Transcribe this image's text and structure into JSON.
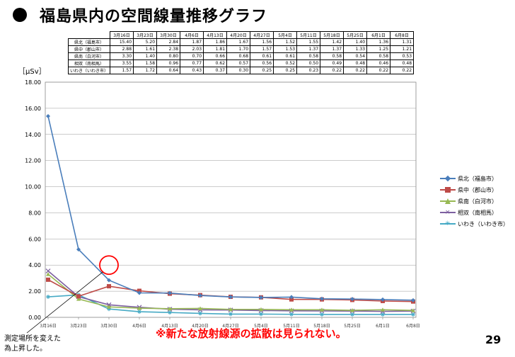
{
  "page_title": "福島県内の空間線量推移グラフ",
  "unit_label": "［μSv］",
  "table": {
    "dates": [
      "3月16日",
      "3月23日",
      "3月30日",
      "4月6日",
      "4月13日",
      "4月20日",
      "4月27日",
      "5月4日",
      "5月11日",
      "5月18日",
      "5月25日",
      "6月1日",
      "6月8日"
    ],
    "rows": [
      {
        "label": "県北（福島市）",
        "values": [
          "15.40",
          "5.20",
          "2.84",
          "1.87",
          "1.86",
          "1.67",
          "1.56",
          "1.52",
          "1.55",
          "1.42",
          "1.40",
          "1.36",
          "1.31"
        ]
      },
      {
        "label": "県中（郡山市）",
        "values": [
          "2.88",
          "1.61",
          "2.38",
          "2.03",
          "1.81",
          "1.70",
          "1.57",
          "1.53",
          "1.37",
          "1.37",
          "1.33",
          "1.25",
          "1.21"
        ]
      },
      {
        "label": "県南（白河市）",
        "values": [
          "3.30",
          "1.40",
          "0.80",
          "0.70",
          "0.66",
          "0.68",
          "0.61",
          "0.61",
          "0.58",
          "0.58",
          "0.54",
          "0.58",
          "0.53"
        ]
      },
      {
        "label": "相双（南相馬）",
        "values": [
          "3.55",
          "1.58",
          "0.96",
          "0.77",
          "0.62",
          "0.57",
          "0.56",
          "0.52",
          "0.50",
          "0.49",
          "0.48",
          "0.46",
          "0.48"
        ]
      },
      {
        "label": "いわき（いわき市）",
        "values": [
          "1.57",
          "1.72",
          "0.64",
          "0.43",
          "0.37",
          "0.30",
          "0.25",
          "0.25",
          "0.23",
          "0.22",
          "0.22",
          "0.22",
          "0.22"
        ]
      }
    ]
  },
  "chart_data": {
    "type": "line",
    "ylim": [
      0,
      18
    ],
    "yticks": [
      "0.00",
      "2.00",
      "4.00",
      "6.00",
      "8.00",
      "10.00",
      "12.00",
      "14.00",
      "16.00",
      "18.00"
    ],
    "grid": true,
    "legend_placement": "right",
    "x": [
      "3月16日",
      "3月23日",
      "3月30日",
      "4月6日",
      "4月13日",
      "4月20日",
      "4月27日",
      "5月4日",
      "5月11日",
      "5月18日",
      "5月25日",
      "6月1日",
      "6月8日"
    ],
    "series": [
      {
        "name": "県北（福島市）",
        "color": "#4a7ebb",
        "marker": "diamond",
        "values": [
          15.4,
          5.2,
          2.84,
          1.87,
          1.86,
          1.67,
          1.56,
          1.52,
          1.55,
          1.42,
          1.4,
          1.36,
          1.31
        ]
      },
      {
        "name": "県中（郡山市）",
        "color": "#be4b48",
        "marker": "square",
        "values": [
          2.88,
          1.61,
          2.38,
          2.03,
          1.81,
          1.7,
          1.57,
          1.53,
          1.37,
          1.37,
          1.33,
          1.25,
          1.21
        ]
      },
      {
        "name": "県南（白河市）",
        "color": "#98b954",
        "marker": "triangle",
        "values": [
          3.3,
          1.4,
          0.8,
          0.7,
          0.66,
          0.68,
          0.61,
          0.61,
          0.58,
          0.58,
          0.54,
          0.58,
          0.53
        ]
      },
      {
        "name": "相双（南相馬）",
        "color": "#7d60a0",
        "marker": "x",
        "values": [
          3.55,
          1.58,
          0.96,
          0.77,
          0.62,
          0.57,
          0.56,
          0.52,
          0.5,
          0.49,
          0.48,
          0.46,
          0.48
        ]
      },
      {
        "name": "いわき（いわき市）",
        "color": "#46aac5",
        "marker": "star",
        "values": [
          1.57,
          1.72,
          0.64,
          0.43,
          0.37,
          0.3,
          0.25,
          0.25,
          0.23,
          0.22,
          0.22,
          0.22,
          0.22
        ]
      }
    ],
    "highlight_value": 4.0
  },
  "annotation_left": [
    "測定場所を変えた",
    "為上昇した。"
  ],
  "annotation_main": "※新たな放射線源の拡散は見られない。",
  "page_number": "29",
  "colors": {
    "highlight": "#ff0000"
  }
}
